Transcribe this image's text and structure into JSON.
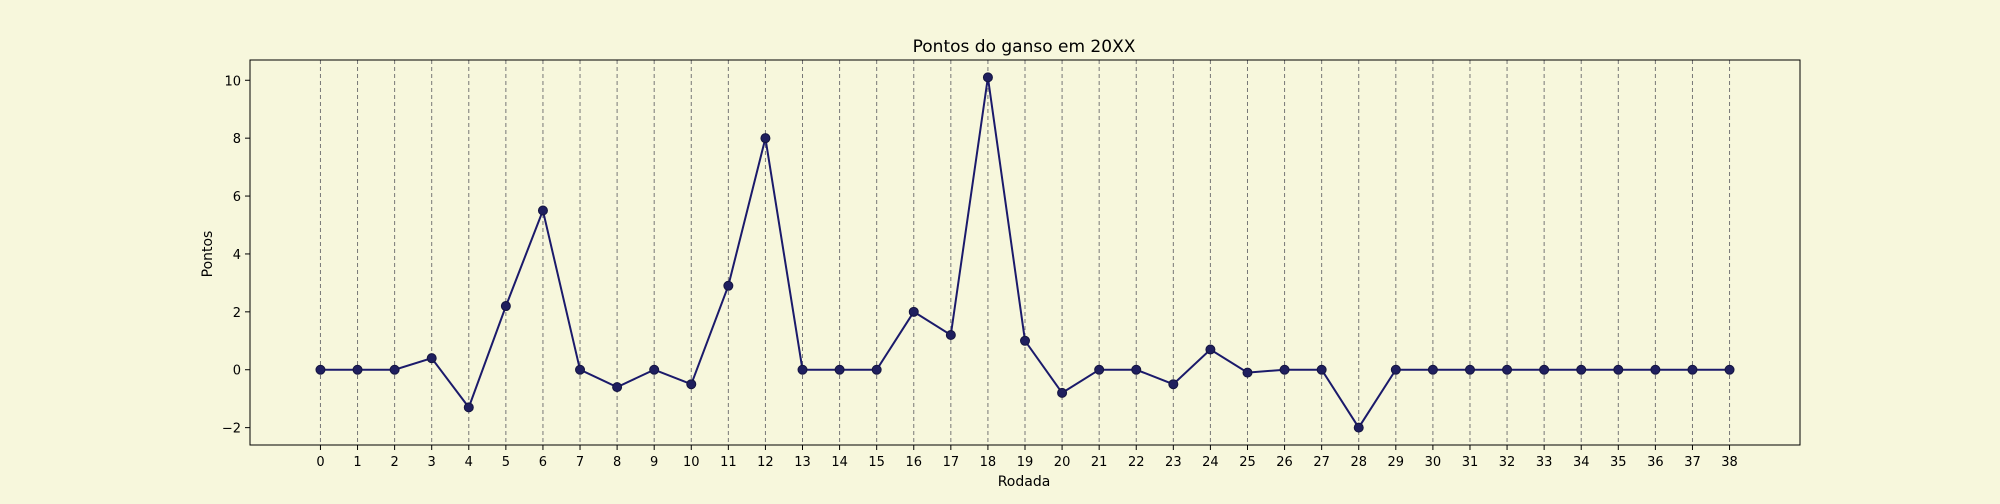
{
  "chart_data": {
    "type": "line",
    "title": "Pontos do ganso em 20XX",
    "xlabel": "Rodada",
    "ylabel": "Pontos",
    "x": [
      0,
      1,
      2,
      3,
      4,
      5,
      6,
      7,
      8,
      9,
      10,
      11,
      12,
      13,
      14,
      15,
      16,
      17,
      18,
      19,
      20,
      21,
      22,
      23,
      24,
      25,
      26,
      27,
      28,
      29,
      30,
      31,
      32,
      33,
      34,
      35,
      36,
      37,
      38
    ],
    "y": [
      0,
      0,
      0,
      0.4,
      -1.3,
      2.2,
      5.5,
      0,
      -0.6,
      0,
      -0.5,
      2.9,
      8.0,
      0,
      0,
      0,
      2.0,
      1.2,
      10.1,
      1.0,
      -0.8,
      0,
      0,
      -0.5,
      0.7,
      -0.1,
      0,
      0,
      -2.0,
      0,
      0,
      0,
      0,
      0,
      0,
      0,
      0,
      0,
      0
    ],
    "xlim": [
      -1.9,
      39.9
    ],
    "ylim": [
      -2.6,
      10.7
    ],
    "xticks": [
      0,
      1,
      2,
      3,
      4,
      5,
      6,
      7,
      8,
      9,
      10,
      11,
      12,
      13,
      14,
      15,
      16,
      17,
      18,
      19,
      20,
      21,
      22,
      23,
      24,
      25,
      26,
      27,
      28,
      29,
      30,
      31,
      32,
      33,
      34,
      35,
      36,
      37,
      38
    ],
    "yticks": [
      -2,
      0,
      2,
      4,
      6,
      8,
      10
    ],
    "grid": "vertical dashed lines at x ticks",
    "legend": "none",
    "colors": {
      "background": "#f7f7dc",
      "line": "#1b1a6b",
      "marker": "#1f1f5e",
      "grid": "#777777"
    }
  }
}
